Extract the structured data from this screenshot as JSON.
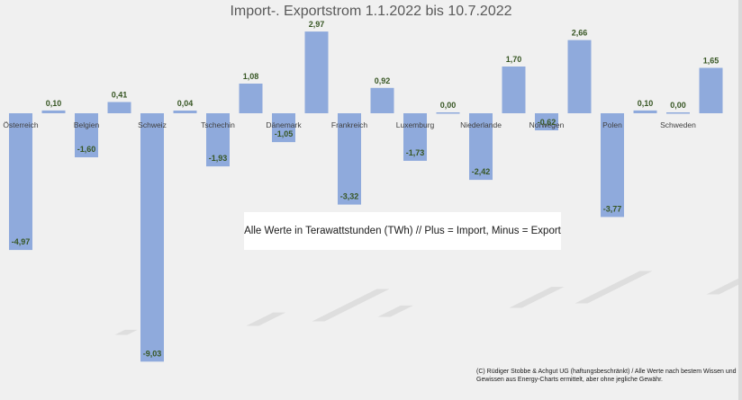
{
  "chart_data": {
    "type": "bar",
    "title": "Import-. Exportstrom 1.1.2022 bis  10.7.2022",
    "categories": [
      "Österreich",
      "",
      "Belgien",
      "",
      "Schweiz",
      "",
      "Tschechin",
      "",
      "Dänemark",
      "",
      "Frankreich",
      "",
      "Luxemburg",
      "",
      "Niederlande",
      "",
      "Norwegen",
      "",
      "Polen",
      "",
      "Schweden",
      ""
    ],
    "values": [
      -4.97,
      0.1,
      -1.6,
      0.41,
      -9.03,
      0.04,
      -1.93,
      1.08,
      -1.05,
      2.97,
      -3.32,
      0.92,
      -1.73,
      0.0,
      -2.42,
      1.7,
      -0.62,
      2.66,
      -3.77,
      0.1,
      0.0,
      1.65
    ],
    "value_labels": [
      "-4,97",
      "0,10",
      "-1,60",
      "0,41",
      "-9,03",
      "0,04",
      "-1,93",
      "1,08",
      "-1,05",
      "2,97",
      "-3,32",
      "0,92",
      "-1,73",
      "0,00",
      "-2,42",
      "1,70",
      "-0,62",
      "2,66",
      "-3,77",
      "0,10",
      "0,00",
      "1,65"
    ],
    "colors": {
      "bar": "#8faadc",
      "label": "#375623",
      "background": "#f0f0f0"
    },
    "grid": false,
    "legend": false
  },
  "note": "Alle Werte in Terawattstunden (TWh) // Plus = Import, Minus = Export",
  "copyright": "(C) Rüdiger Stobbe & Achgut UG (haftungsbeschränkt) / Alle Werte nach bestem Wissen und Gewissen aus Energy-Charts ermittelt, aber ohne jegliche Gewähr."
}
